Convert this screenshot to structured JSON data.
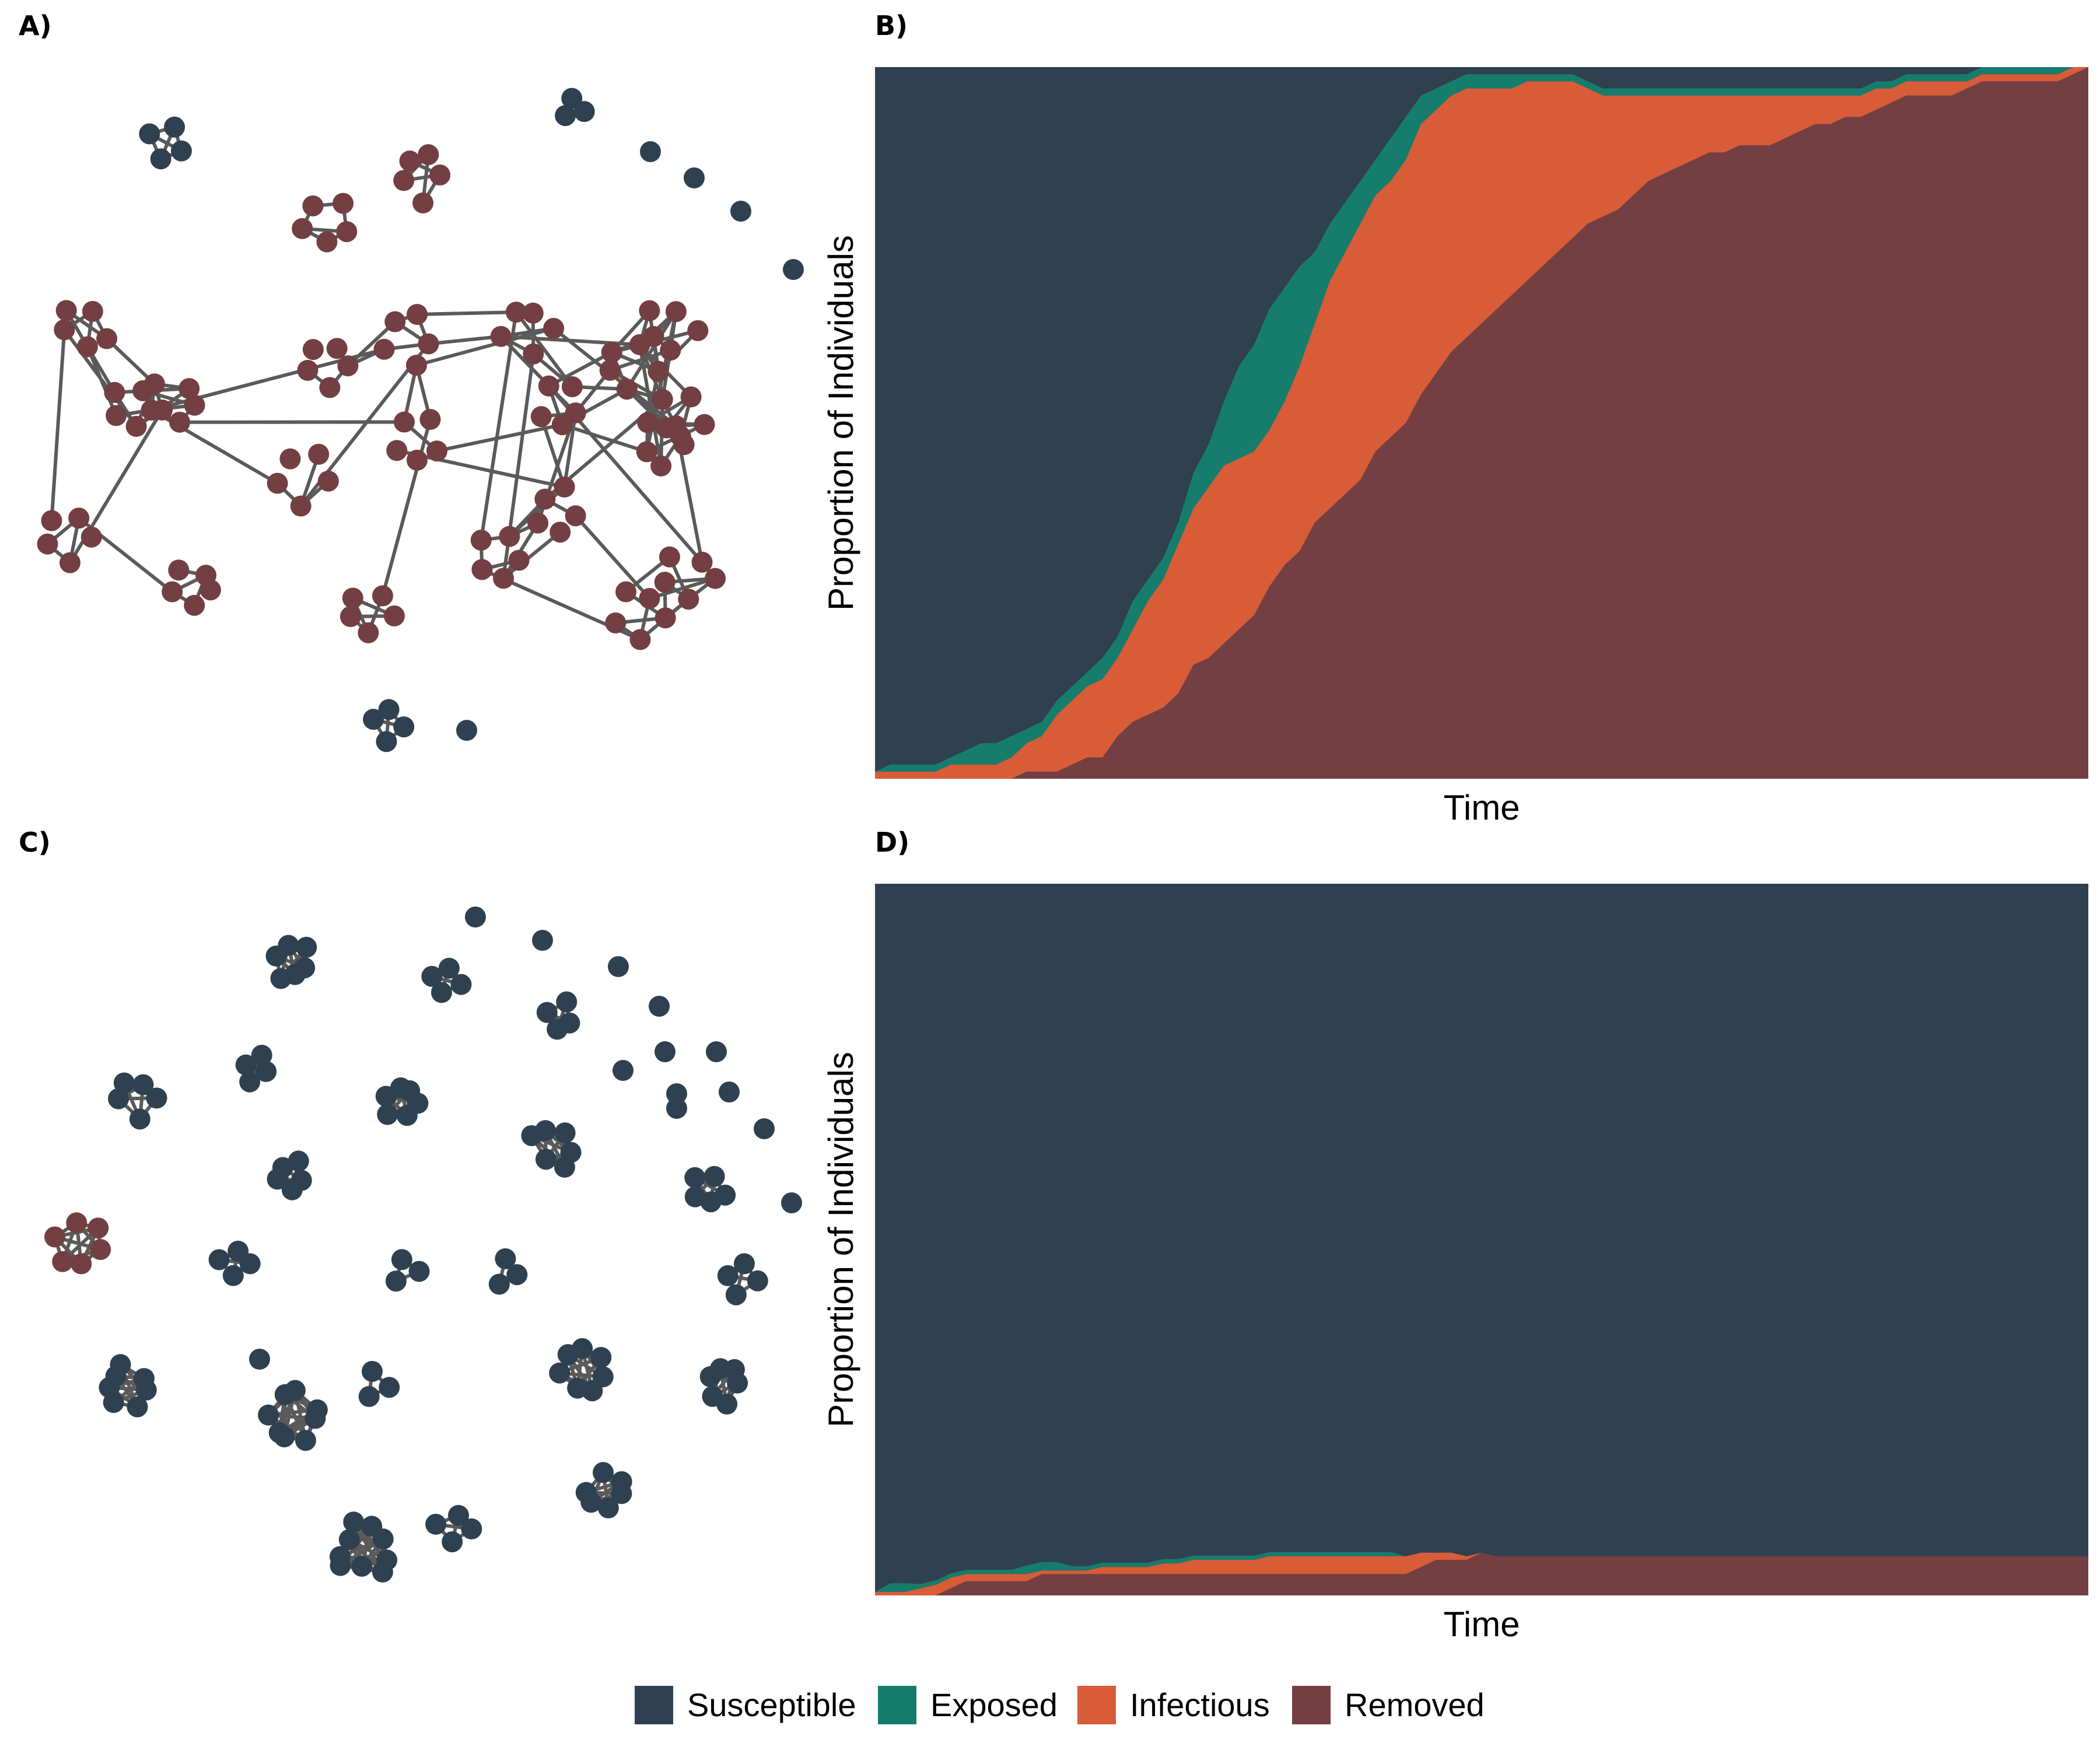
{
  "panels": {
    "A": {
      "label": "A)"
    },
    "B": {
      "label": "B)"
    },
    "C": {
      "label": "C)"
    },
    "D": {
      "label": "D)"
    }
  },
  "colors": {
    "Susceptible": "#2f4050",
    "Exposed": "#167d6d",
    "Infectious": "#d75c37",
    "Removed": "#733f42",
    "edge": "#5a5a5a"
  },
  "legend": [
    "Susceptible",
    "Exposed",
    "Infectious",
    "Removed"
  ],
  "chart_data": [
    {
      "panel": "B",
      "type": "area",
      "stacked": true,
      "normalized": true,
      "xlabel": "Time",
      "ylabel": "Proportion of Individuals",
      "ylim": [
        0,
        1
      ],
      "grid": false,
      "x": [
        0,
        1,
        2,
        3,
        4,
        5,
        6,
        7,
        8,
        9,
        10,
        11,
        12,
        13,
        14,
        15,
        16,
        17,
        18,
        19,
        20,
        21,
        22,
        23,
        24,
        25,
        26,
        27,
        28,
        29,
        30,
        31,
        32,
        33,
        34,
        35,
        36,
        37,
        38,
        39,
        40,
        41,
        42,
        43,
        44,
        45,
        46,
        47,
        48,
        49,
        50,
        51,
        52,
        53,
        54,
        55,
        56,
        57,
        58,
        59,
        60,
        61,
        62,
        63,
        64,
        65,
        66,
        67,
        68,
        69,
        70,
        71,
        72,
        73,
        74,
        75,
        76,
        77,
        78,
        79,
        80
      ],
      "series": [
        {
          "name": "Removed",
          "values": [
            0,
            0,
            0,
            0,
            0,
            0,
            0,
            0,
            0,
            0,
            0.01,
            0.01,
            0.01,
            0.02,
            0.03,
            0.03,
            0.06,
            0.08,
            0.09,
            0.1,
            0.12,
            0.16,
            0.17,
            0.19,
            0.21,
            0.23,
            0.27,
            0.3,
            0.32,
            0.36,
            0.38,
            0.4,
            0.42,
            0.46,
            0.48,
            0.5,
            0.54,
            0.57,
            0.6,
            0.62,
            0.64,
            0.66,
            0.68,
            0.7,
            0.72,
            0.74,
            0.76,
            0.78,
            0.79,
            0.8,
            0.82,
            0.84,
            0.85,
            0.86,
            0.87,
            0.88,
            0.88,
            0.89,
            0.89,
            0.89,
            0.9,
            0.91,
            0.92,
            0.92,
            0.93,
            0.93,
            0.94,
            0.95,
            0.96,
            0.96,
            0.96,
            0.96,
            0.97,
            0.98,
            0.98,
            0.98,
            0.98,
            0.98,
            0.98,
            0.99,
            1.0
          ]
        },
        {
          "name": "Infectious",
          "values": [
            0.01,
            0.01,
            0.01,
            0.01,
            0.01,
            0.02,
            0.02,
            0.02,
            0.02,
            0.03,
            0.04,
            0.05,
            0.08,
            0.09,
            0.1,
            0.11,
            0.11,
            0.13,
            0.16,
            0.18,
            0.21,
            0.22,
            0.24,
            0.25,
            0.24,
            0.23,
            0.22,
            0.23,
            0.26,
            0.28,
            0.32,
            0.34,
            0.36,
            0.36,
            0.36,
            0.37,
            0.38,
            0.37,
            0.36,
            0.35,
            0.33,
            0.31,
            0.29,
            0.28,
            0.26,
            0.24,
            0.22,
            0.19,
            0.17,
            0.16,
            0.14,
            0.12,
            0.11,
            0.1,
            0.09,
            0.08,
            0.08,
            0.07,
            0.07,
            0.07,
            0.06,
            0.05,
            0.04,
            0.04,
            0.03,
            0.03,
            0.03,
            0.02,
            0.02,
            0.02,
            0.02,
            0.02,
            0.01,
            0.01,
            0.01,
            0.01,
            0.01,
            0.01,
            0.01,
            0.01,
            0
          ]
        },
        {
          "name": "Exposed",
          "values": [
            0,
            0.01,
            0.01,
            0.01,
            0.01,
            0.01,
            0.02,
            0.03,
            0.03,
            0.03,
            0.02,
            0.02,
            0.02,
            0.02,
            0.02,
            0.03,
            0.03,
            0.04,
            0.03,
            0.03,
            0.03,
            0.05,
            0.06,
            0.09,
            0.13,
            0.15,
            0.17,
            0.16,
            0.14,
            0.1,
            0.08,
            0.07,
            0.06,
            0.05,
            0.06,
            0.06,
            0.04,
            0.03,
            0.02,
            0.02,
            0.02,
            0.02,
            0.02,
            0.01,
            0.01,
            0.01,
            0.01,
            0.01,
            0.01,
            0.01,
            0.01,
            0.01,
            0.01,
            0.01,
            0.01,
            0.01,
            0.01,
            0.01,
            0.01,
            0.01,
            0.01,
            0.01,
            0.01,
            0.01,
            0.01,
            0.01,
            0.01,
            0.01,
            0.01,
            0.01,
            0.01,
            0.01,
            0.01,
            0.01,
            0.01,
            0.01,
            0.01,
            0.01,
            0.01,
            0,
            0
          ]
        }
      ]
    },
    {
      "panel": "D",
      "type": "area",
      "stacked": true,
      "normalized": true,
      "xlabel": "Time",
      "ylabel": "Proportion of Individuals",
      "ylim": [
        0,
        1
      ],
      "grid": false,
      "x": [
        0,
        1,
        2,
        3,
        4,
        5,
        6,
        7,
        8,
        9,
        10,
        11,
        12,
        13,
        14,
        15,
        16,
        17,
        18,
        19,
        20,
        21,
        22,
        23,
        24,
        25,
        26,
        27,
        28,
        29,
        30,
        31,
        32,
        33,
        34,
        35,
        36,
        37,
        38,
        39,
        40,
        41,
        42,
        43,
        44,
        45,
        46,
        47,
        48,
        49,
        50,
        51,
        52,
        53,
        54,
        55,
        56,
        57,
        58,
        59,
        60,
        61,
        62,
        63,
        64,
        65,
        66,
        67,
        68,
        69,
        70,
        71,
        72,
        73,
        74,
        75,
        76,
        77,
        78,
        79,
        80
      ],
      "series": [
        {
          "name": "Removed",
          "values": [
            0,
            0,
            0,
            0,
            0,
            0.01,
            0.02,
            0.02,
            0.02,
            0.02,
            0.02,
            0.03,
            0.03,
            0.03,
            0.03,
            0.03,
            0.03,
            0.03,
            0.03,
            0.03,
            0.03,
            0.03,
            0.03,
            0.03,
            0.03,
            0.03,
            0.03,
            0.03,
            0.03,
            0.03,
            0.03,
            0.03,
            0.03,
            0.03,
            0.03,
            0.03,
            0.04,
            0.05,
            0.05,
            0.05,
            0.06,
            0.055,
            0.055,
            0.055,
            0.055,
            0.055,
            0.055,
            0.055,
            0.055,
            0.055,
            0.055,
            0.055,
            0.055,
            0.055,
            0.055,
            0.055,
            0.055,
            0.055,
            0.055,
            0.055,
            0.055,
            0.055,
            0.055,
            0.055,
            0.055,
            0.055,
            0.055,
            0.055,
            0.055,
            0.055,
            0.055,
            0.055,
            0.055,
            0.055,
            0.055,
            0.055,
            0.055,
            0.055,
            0.055,
            0.055,
            0.055
          ]
        },
        {
          "name": "Infectious",
          "values": [
            0.005,
            0.005,
            0.005,
            0.01,
            0.015,
            0.015,
            0.01,
            0.01,
            0.01,
            0.01,
            0.01,
            0.005,
            0.005,
            0.005,
            0.005,
            0.01,
            0.01,
            0.01,
            0.01,
            0.015,
            0.015,
            0.02,
            0.02,
            0.02,
            0.02,
            0.02,
            0.025,
            0.025,
            0.025,
            0.025,
            0.025,
            0.025,
            0.025,
            0.025,
            0.025,
            0.025,
            0.02,
            0.01,
            0.01,
            0.005,
            0,
            0,
            0,
            0,
            0,
            0,
            0,
            0,
            0,
            0,
            0,
            0,
            0,
            0,
            0,
            0,
            0,
            0,
            0,
            0,
            0,
            0,
            0,
            0,
            0,
            0,
            0,
            0,
            0,
            0,
            0,
            0,
            0,
            0,
            0,
            0,
            0,
            0,
            0,
            0,
            0
          ]
        },
        {
          "name": "Exposed",
          "values": [
            0,
            0.012,
            0.012,
            0.006,
            0.006,
            0.006,
            0.006,
            0.006,
            0.006,
            0.006,
            0.012,
            0.012,
            0.012,
            0.006,
            0.006,
            0.006,
            0.006,
            0.006,
            0.006,
            0.006,
            0.006,
            0.006,
            0.006,
            0.006,
            0.006,
            0.006,
            0.006,
            0.006,
            0.006,
            0.006,
            0.006,
            0.006,
            0.006,
            0.006,
            0.006,
            0,
            0,
            0,
            0,
            0,
            0,
            0,
            0,
            0,
            0,
            0,
            0,
            0,
            0,
            0,
            0,
            0,
            0,
            0,
            0,
            0,
            0,
            0,
            0,
            0,
            0,
            0,
            0,
            0,
            0,
            0,
            0,
            0,
            0,
            0,
            0,
            0,
            0,
            0,
            0,
            0,
            0,
            0,
            0,
            0,
            0
          ]
        }
      ]
    }
  ]
}
